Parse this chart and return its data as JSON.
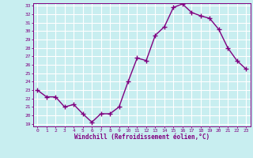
{
  "x": [
    0,
    1,
    2,
    3,
    4,
    5,
    6,
    7,
    8,
    9,
    10,
    11,
    12,
    13,
    14,
    15,
    16,
    17,
    18,
    19,
    20,
    21,
    22,
    23
  ],
  "y": [
    23.0,
    22.2,
    22.2,
    21.0,
    21.3,
    20.2,
    19.2,
    20.2,
    20.2,
    21.0,
    24.0,
    26.8,
    26.5,
    29.5,
    30.5,
    32.8,
    33.2,
    32.2,
    31.8,
    31.5,
    30.2,
    28.0,
    26.5,
    25.5
  ],
  "line_color": "#800080",
  "marker": "+",
  "marker_color": "#800080",
  "bg_color": "#c8eef0",
  "grid_color": "#ffffff",
  "ylim": [
    19,
    33
  ],
  "yticks": [
    19,
    20,
    21,
    22,
    23,
    24,
    25,
    26,
    27,
    28,
    29,
    30,
    31,
    32,
    33
  ],
  "xlim": [
    -0.5,
    23.5
  ],
  "xlabel": "Windchill (Refroidissement éolien,°C)",
  "line_width": 1.0,
  "marker_size": 4
}
